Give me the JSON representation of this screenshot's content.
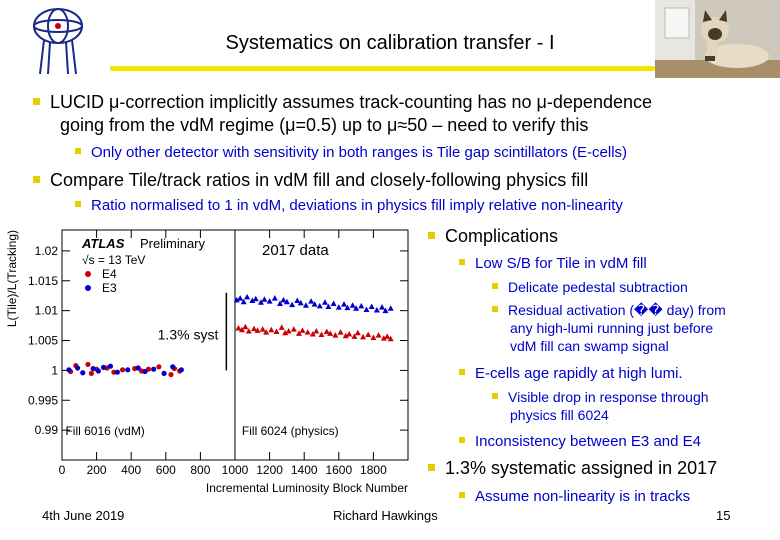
{
  "header": {
    "title": "Systematics on calibration transfer - I"
  },
  "bullets": {
    "b1_line1": "LUCID μ-correction implicitly assumes track-counting has no μ-dependence",
    "b1_line2": "going from the vdM regime (μ=0.5) up to μ≈50 – need to verify this",
    "b1_sub": "Only other detector with sensitivity in both ranges is Tile gap scintillators (E-cells)",
    "b2": "Compare Tile/track ratios in vdM fill and closely-following physics fill",
    "b2_sub": "Ratio normalised to 1 in vdM, deviations in physics fill imply relative non-linearity"
  },
  "right": {
    "complications": "Complications",
    "low_sb": "Low S/B for Tile in vdM fill",
    "delicate": "Delicate pedestal subtraction",
    "residual_1": "Residual activation (�� day) from",
    "residual_2": "any high-lumi running just before",
    "residual_3": "vdM fill can swamp signal",
    "ecells": "E-cells age rapidly at high lumi.",
    "visible_1": "Visible drop in response through",
    "visible_2": "physics fill 6024",
    "inconsistency": "Inconsistency between E3 and E4",
    "systematic": "1.3% systematic assigned in 2017",
    "assume": "Assume non-linearity is in tracks"
  },
  "footer": {
    "date": "4th June 2019",
    "author": "Richard Hawkings",
    "page": "15"
  },
  "colors": {
    "accent_yellow": "#e6cf00",
    "blue_text": "#0000cc",
    "e4_red": "#cc0000",
    "e3_blue": "#0000cc"
  },
  "chart_data": {
    "type": "scatter",
    "title": "",
    "xlabel": "Incremental Luminosity Block Number",
    "ylabel": "L(Tile)/L(Tracking)",
    "xlim": [
      0,
      2000
    ],
    "ylim": [
      0.985,
      1.0235
    ],
    "xticks": [
      0,
      200,
      400,
      600,
      800,
      1000,
      1200,
      1400,
      1600,
      1800
    ],
    "yticks": [
      0.99,
      0.995,
      1,
      1.005,
      1.01,
      1.015,
      1.02
    ],
    "ytick_labels": [
      "0.99",
      "0.995",
      "1",
      "1.005",
      "1.01",
      "1.015",
      "1.02"
    ],
    "atlas_label": "ATLAS",
    "atlas_sub": "Preliminary",
    "energy_label": "√s = 13 TeV",
    "legend": [
      "E4",
      "E3"
    ],
    "annotations": {
      "data_label": "2017 data",
      "syst_label": "1.3% syst",
      "fill_vdm": "Fill 6016 (vdM)",
      "fill_phys": "Fill 6024 (physics)"
    },
    "syst_range": [
      1.0,
      1.013
    ],
    "separator_x": 1000,
    "series": [
      {
        "name": "E4",
        "color": "#cc0000",
        "x": [
          50,
          80,
          150,
          170,
          200,
          260,
          300,
          350,
          420,
          460,
          500,
          560,
          630,
          650,
          680,
          1020,
          1040,
          1060,
          1080,
          1110,
          1130,
          1160,
          1180,
          1210,
          1240,
          1270,
          1290,
          1310,
          1340,
          1370,
          1390,
          1420,
          1450,
          1470,
          1500,
          1530,
          1550,
          1580,
          1610,
          1640,
          1660,
          1690,
          1710,
          1740,
          1770,
          1800,
          1830,
          1860,
          1880,
          1900
        ],
        "y": [
          0.9998,
          1.0008,
          1.001,
          0.9995,
          1.0002,
          1.0004,
          0.9997,
          1.0001,
          1.0003,
          0.9999,
          1.0002,
          1.0006,
          0.9993,
          1.0003,
          0.9999,
          1.0071,
          1.0068,
          1.0073,
          1.0066,
          1.007,
          1.0067,
          1.0069,
          1.0064,
          1.0068,
          1.0065,
          1.0072,
          1.0063,
          1.0066,
          1.0069,
          1.0062,
          1.0067,
          1.0064,
          1.0061,
          1.0066,
          1.006,
          1.0065,
          1.0062,
          1.0059,
          1.0064,
          1.0058,
          1.0061,
          1.0057,
          1.0063,
          1.0056,
          1.006,
          1.0055,
          1.0059,
          1.0054,
          1.0057,
          1.0053
        ]
      },
      {
        "name": "E3",
        "color": "#0000cc",
        "x": [
          40,
          90,
          120,
          180,
          210,
          240,
          280,
          320,
          380,
          440,
          480,
          530,
          590,
          640,
          690,
          1010,
          1030,
          1050,
          1070,
          1100,
          1120,
          1150,
          1170,
          1200,
          1230,
          1260,
          1280,
          1300,
          1330,
          1360,
          1380,
          1410,
          1440,
          1460,
          1490,
          1520,
          1540,
          1570,
          1600,
          1630,
          1650,
          1680,
          1700,
          1730,
          1760,
          1790,
          1820,
          1850,
          1870,
          1900
        ],
        "y": [
          1.0001,
          1.0004,
          0.9996,
          1.0003,
          0.9999,
          1.0005,
          1.0007,
          0.9997,
          1.0001,
          1.0004,
          0.9998,
          1.0002,
          0.9995,
          1.0006,
          1.0001,
          1.0118,
          1.0121,
          1.0115,
          1.0123,
          1.0117,
          1.012,
          1.0114,
          1.0119,
          1.0116,
          1.0121,
          1.0112,
          1.0118,
          1.0115,
          1.011,
          1.0117,
          1.0113,
          1.0109,
          1.0116,
          1.0111,
          1.0108,
          1.0114,
          1.0107,
          1.0112,
          1.0106,
          1.0111,
          1.0105,
          1.0109,
          1.0104,
          1.0108,
          1.0102,
          1.0107,
          1.0101,
          1.0106,
          1.01,
          1.0104
        ]
      }
    ]
  }
}
